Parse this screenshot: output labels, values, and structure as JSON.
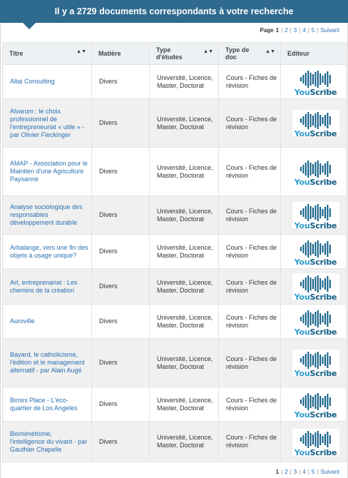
{
  "banner": {
    "text": "Il y a 2729 documents correspondants à votre recherche"
  },
  "pagination": {
    "label": "Page",
    "current": "1",
    "pages": [
      "2",
      "3",
      "4",
      "5"
    ],
    "next": "Suivant"
  },
  "table": {
    "headers": {
      "title": "Titre",
      "subject": "Matière",
      "study_type": "Type d'études",
      "doc_type": "Type de doc",
      "publisher": "Editeur"
    },
    "sort_glyph": "▲▼",
    "rows": [
      {
        "title": "Altai Consulting",
        "subject": "Divers",
        "study": "Université, Licence, Master, Doctorat",
        "doc": "Cours - Fiches de révision",
        "publisher": "YouScribe"
      },
      {
        "title": "Alvarum : le choix professionnel de l'entrepreneuriat « utile » - par Olivier Fleckinger",
        "subject": "Divers",
        "study": "Université, Licence, Master, Doctorat",
        "doc": "Cours - Fiches de révision",
        "publisher": "YouScribe"
      },
      {
        "title": "AMAP - Association pour le Maintien d'une Agriculture Paysanne",
        "subject": "Divers",
        "study": "Université, Licence, Master, Doctorat",
        "doc": "Cours - Fiches de révision",
        "publisher": "YouScribe"
      },
      {
        "title": "Analyse sociologique des responsables développement durable",
        "subject": "Divers",
        "study": "Université, Licence, Master, Doctorat",
        "doc": "Cours - Fiches de révision",
        "publisher": "YouScribe"
      },
      {
        "title": "Arbalange, vers une fin des objets à usage unique?",
        "subject": "Divers",
        "study": "Université, Licence, Master, Doctorat",
        "doc": "Cours - Fiches de révision",
        "publisher": "YouScribe"
      },
      {
        "title": "Art, entreprenariat : Les chemins de la création",
        "subject": "Divers",
        "study": "Université, Licence, Master, Doctorat",
        "doc": "Cours - Fiches de révision",
        "publisher": "YouScribe"
      },
      {
        "title": "Auroville",
        "subject": "Divers",
        "study": "Université, Licence, Master, Doctorat",
        "doc": "Cours - Fiches de révision",
        "publisher": "YouScribe"
      },
      {
        "title": "Bayard, le catholicisme, l'édition et le management alternatif - par Alain Augé",
        "subject": "Divers",
        "study": "Université, Licence, Master, Doctorat",
        "doc": "Cours - Fiches de révision",
        "publisher": "YouScribe"
      },
      {
        "title": "Bimini Place - L'éco-quartier de Los Angeles",
        "subject": "Divers",
        "study": "Université, Licence, Master, Doctorat",
        "doc": "Cours - Fiches de révision",
        "publisher": "YouScribe"
      },
      {
        "title": "Biomimétisme, l'intelligence du vivant - par Gauthier Chapelle",
        "subject": "Divers",
        "study": "Université, Licence, Master, Doctorat",
        "doc": "Cours - Fiches de révision",
        "publisher": "YouScribe"
      }
    ]
  },
  "colors": {
    "banner_bg": "#2f6a8f",
    "link": "#2a6fb0",
    "row_alt": "#f0f0f0",
    "logo_you": "#2d9ccd",
    "logo_scribe": "#0e5c84"
  },
  "icons": {
    "publisher_logo": "youscribe-logo-icon",
    "sort": "sort-arrows-icon"
  }
}
